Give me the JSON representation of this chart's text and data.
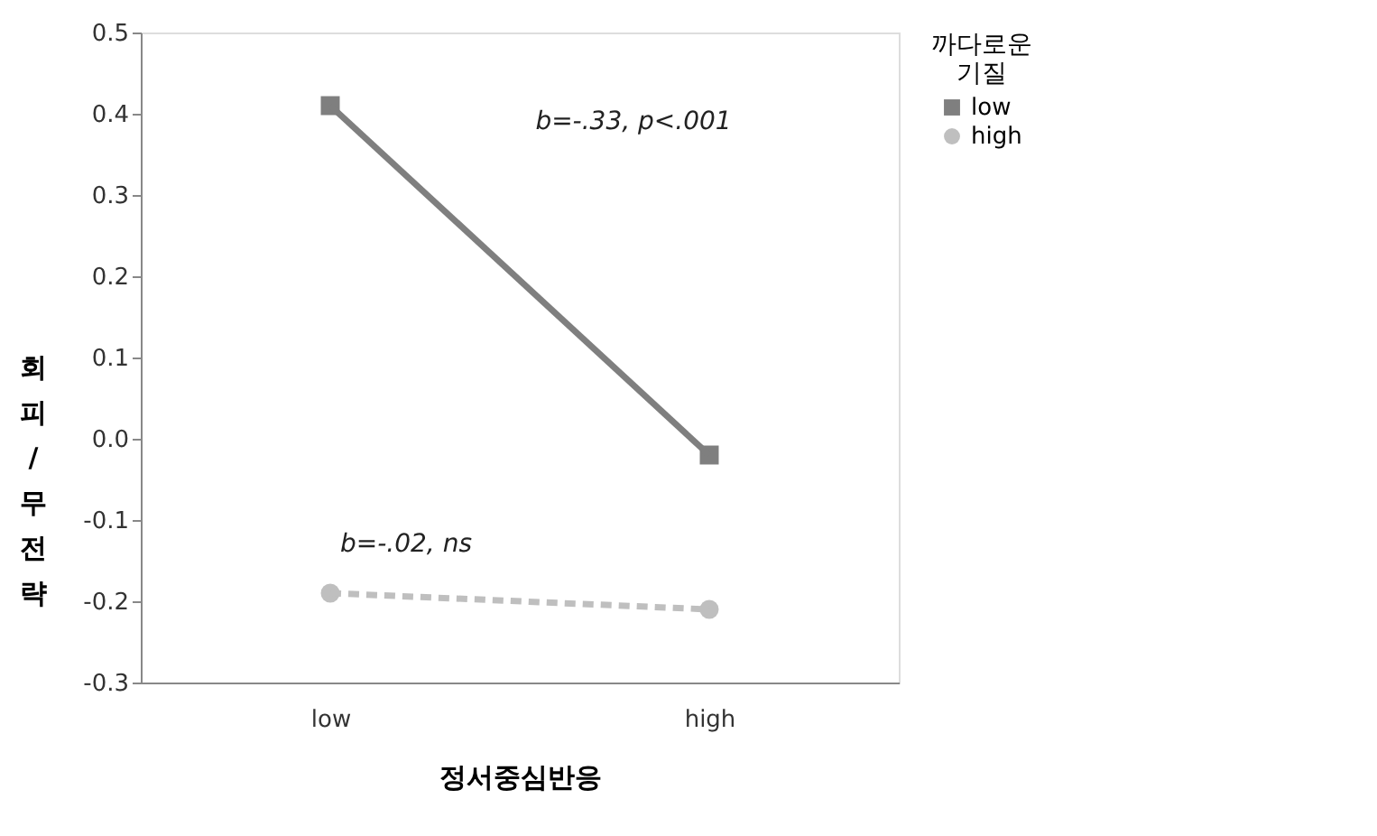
{
  "chart_data": {
    "type": "line",
    "xlabel": "정서중심반응",
    "ylabel": "회피/무전략",
    "legend_title": "까다로운 기질",
    "categories": [
      "low",
      "high"
    ],
    "series": [
      {
        "name": "low",
        "color": "#7f7f7f",
        "values": [
          0.41,
          -0.02
        ],
        "marker": "square",
        "line_style": "solid"
      },
      {
        "name": "high",
        "color": "#bfbfbf",
        "values": [
          -0.19,
          -0.21
        ],
        "marker": "circle",
        "line_style": "dashed"
      }
    ],
    "annotations": [
      "b=-.33,  p<.001",
      "b=-.02,  ns"
    ],
    "ylim": [
      -0.3,
      0.5
    ],
    "yticks": [
      {
        "value": -0.3,
        "label": "-0.3"
      },
      {
        "value": -0.2,
        "label": "-0.2"
      },
      {
        "value": -0.1,
        "label": "-0.1"
      },
      {
        "value": 0,
        "label": "0.0"
      },
      0.1,
      0.2,
      0.3,
      0.4,
      0.5
    ],
    "grid": false,
    "legend": "right"
  }
}
